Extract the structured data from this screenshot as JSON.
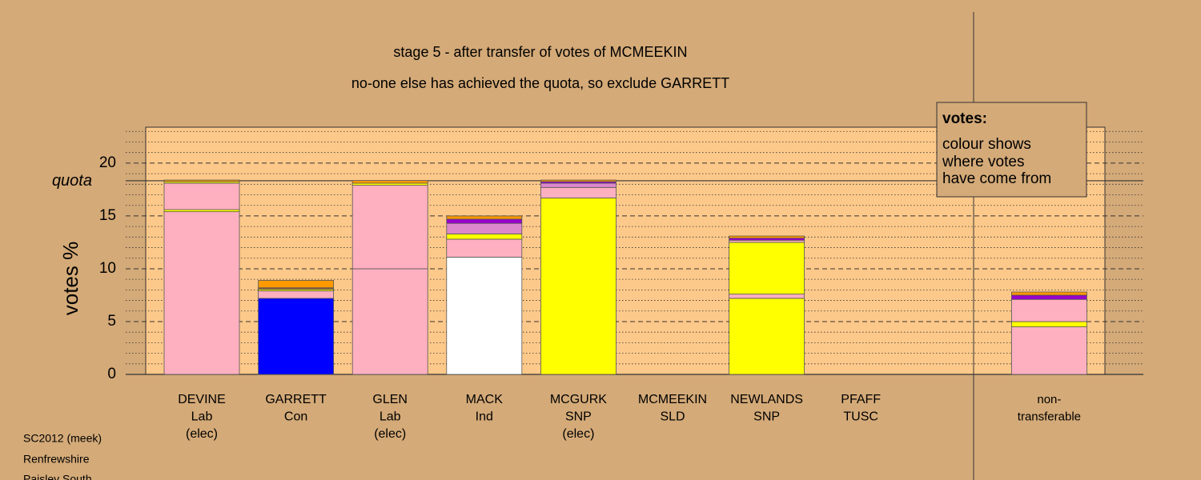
{
  "chart_data": {
    "type": "stacked-bar",
    "title": "stage 5 - after transfer of votes of MCMEEKIN",
    "subtitle": "no-one else has achieved the quota, so exclude GARRETT",
    "y_label": "votes %",
    "quota_label": "quota",
    "quota": 18.33,
    "ylim": [
      0,
      23.4
    ],
    "yticks": [
      0,
      5,
      10,
      15,
      20
    ],
    "minor_yticks": [
      1,
      2,
      3,
      4,
      6,
      7,
      8,
      9,
      11,
      12,
      13,
      14,
      16,
      17,
      18,
      19,
      21,
      22,
      23
    ],
    "categories": [
      [
        "DEVINE",
        "Lab",
        "(elec)"
      ],
      [
        "GARRETT",
        "Con"
      ],
      [
        "GLEN",
        "Lab",
        "(elec)"
      ],
      [
        "MACK",
        "Ind"
      ],
      [
        "MCGURK",
        "SNP",
        "(elec)"
      ],
      [
        "MCMEEKIN",
        "SLD"
      ],
      [
        "NEWLANDS",
        "SNP"
      ],
      [
        "PFAFF",
        "TUSC"
      ],
      [
        "non-",
        "transferable"
      ]
    ],
    "stacks": [
      [
        {
          "color": "#ffb0c0",
          "value": 15.4
        },
        {
          "color": "#ffff00",
          "value": 0.2
        },
        {
          "color": "#ffb0c0",
          "value": 2.5
        },
        {
          "color": "#ffff00",
          "value": 0.15
        },
        {
          "color": "#ff9900",
          "value": 0.15
        }
      ],
      [
        {
          "color": "#0000ff",
          "value": 7.2
        },
        {
          "color": "#ffb0c0",
          "value": 0.7
        },
        {
          "color": "#ffff00",
          "value": 0.15
        },
        {
          "color": "#996633",
          "value": 0.15
        },
        {
          "color": "#ff9900",
          "value": 0.7
        }
      ],
      [
        {
          "color": "#ffb0c0",
          "value": 10.0
        },
        {
          "color": "#ffb0c0",
          "value": 7.9
        },
        {
          "color": "#ffff00",
          "value": 0.2
        },
        {
          "color": "#ff9900",
          "value": 0.25
        }
      ],
      [
        {
          "color": "#ffffff",
          "value": 11.1
        },
        {
          "color": "#ffb0c0",
          "value": 1.7
        },
        {
          "color": "#ffff00",
          "value": 0.5
        },
        {
          "color": "#dd88cc",
          "value": 1.0
        },
        {
          "color": "#9900cc",
          "value": 0.4
        },
        {
          "color": "#ff9900",
          "value": 0.3
        }
      ],
      [
        {
          "color": "#ffff00",
          "value": 16.7
        },
        {
          "color": "#ffb0c0",
          "value": 1.0
        },
        {
          "color": "#dd88cc",
          "value": 0.4
        },
        {
          "color": "#9900cc",
          "value": 0.15
        },
        {
          "color": "#ff9900",
          "value": 0.15
        }
      ],
      [],
      [
        {
          "color": "#ffff00",
          "value": 7.2
        },
        {
          "color": "#ffb0c0",
          "value": 0.4
        },
        {
          "color": "#ffff00",
          "value": 4.9
        },
        {
          "color": "#ffb0c0",
          "value": 0.2
        },
        {
          "color": "#9900cc",
          "value": 0.2
        },
        {
          "color": "#ff9900",
          "value": 0.2
        }
      ],
      [],
      [
        {
          "color": "#ffb0c0",
          "value": 4.5
        },
        {
          "color": "#ffff00",
          "value": 0.5
        },
        {
          "color": "#ffb0c0",
          "value": 2.1
        },
        {
          "color": "#9900cc",
          "value": 0.4
        },
        {
          "color": "#ff9900",
          "value": 0.3
        }
      ]
    ],
    "note": {
      "heading": "votes:",
      "lines": [
        "colour shows",
        "where votes",
        "have come from"
      ]
    },
    "footer": [
      "SC2012 (meek)",
      "Renfrewshire",
      "Paisley South"
    ]
  }
}
